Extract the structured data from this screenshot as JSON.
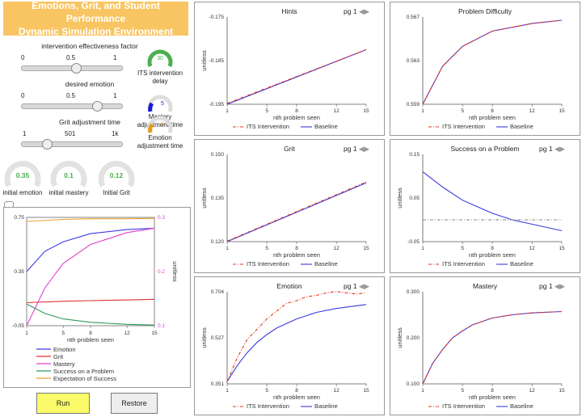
{
  "header": {
    "title_line1": "Emotions, Grit, and Student Performance",
    "title_line2": "Dynamic Simulation Environment"
  },
  "sliders": [
    {
      "label": "intervention effectiveness factor",
      "ticks": [
        "0",
        "0.5",
        "1"
      ],
      "value": 0.45
    },
    {
      "label": "desired emotion",
      "ticks": [
        "0",
        "0.5",
        "1"
      ],
      "value": 0.78
    },
    {
      "label": "Grit adjustment time",
      "ticks": [
        "1",
        "501",
        "1k"
      ],
      "value": 0.2
    }
  ],
  "gauges": [
    {
      "value": "30",
      "label1": "ITS intervention",
      "label2": "delay",
      "color": "#4caf50",
      "fraction": 0.45
    },
    {
      "value": "5",
      "label1": "Mastery",
      "label2": "adjustment time",
      "color": "#1a1adb",
      "fraction": 0.25
    },
    {
      "value": "5",
      "label1": "Emotion",
      "label2": "adjustment time",
      "color": "#e89a1a",
      "fraction": 0.25
    }
  ],
  "initial_gauges": [
    {
      "value": "0.35",
      "label": "initial emotion"
    },
    {
      "value": "0.1",
      "label": "initial mastery"
    },
    {
      "value": "0.12",
      "label": "Initial Grit"
    }
  ],
  "buttons": {
    "run": "Run",
    "restore": "Restore"
  },
  "colors": {
    "its": "#e8341c",
    "baseline": "#3a3ae0",
    "banner": "#f8c562",
    "gauge_green": "#4caf50"
  },
  "pager": {
    "label": "pg 1"
  },
  "legend_its": "ITS Intervention",
  "legend_baseline": "Baseline",
  "chart_data": [
    {
      "id": "main",
      "type": "line",
      "xlabel": "nth problem seen",
      "ylabel_right": "unitless",
      "x_ticks": [
        "1",
        "5",
        "8",
        "12",
        "15"
      ],
      "y_ticks_left": [
        "0.75",
        "0.35",
        "-0.05"
      ],
      "y_ticks_right": [
        "0.3",
        "0.2",
        "0.1"
      ],
      "xlim": [
        1,
        15
      ],
      "ylim_left": [
        -0.05,
        0.75
      ],
      "ylim_right": [
        0.1,
        0.3
      ],
      "series": [
        {
          "name": "Emotion",
          "color": "#3a3ae0",
          "axis": "left",
          "x": [
            1,
            3,
            5,
            8,
            12,
            15
          ],
          "values": [
            0.35,
            0.5,
            0.57,
            0.63,
            0.66,
            0.67
          ]
        },
        {
          "name": "Grit",
          "color": "#e03030",
          "axis": "left",
          "x": [
            1,
            5,
            8,
            12,
            15
          ],
          "values": [
            0.12,
            0.13,
            0.135,
            0.14,
            0.145
          ]
        },
        {
          "name": "Mastery",
          "color": "#e040d0",
          "axis": "right",
          "x": [
            1,
            3,
            5,
            8,
            12,
            15
          ],
          "values": [
            0.1,
            0.17,
            0.215,
            0.25,
            0.272,
            0.28
          ]
        },
        {
          "name": "Success on a Problem",
          "color": "#2e9a5a",
          "axis": "left",
          "x": [
            1,
            3,
            5,
            8,
            12,
            15
          ],
          "values": [
            0.11,
            0.04,
            0.0,
            -0.025,
            -0.04,
            -0.045
          ]
        },
        {
          "name": "Expectation of Success",
          "color": "#f0a030",
          "axis": "left",
          "x": [
            1,
            5,
            8,
            12,
            15
          ],
          "values": [
            0.72,
            0.735,
            0.74,
            0.74,
            0.742
          ]
        }
      ]
    },
    {
      "id": "hints",
      "type": "line",
      "title": "Hints",
      "xlabel": "nth problem seen",
      "ylabel": "unitless",
      "x_ticks": [
        "1",
        "5",
        "8",
        "12",
        "15"
      ],
      "y_ticks": [
        "-0.175",
        "-0.185",
        "-0.195"
      ],
      "xlim": [
        1,
        15
      ],
      "ylim": [
        -0.195,
        -0.175
      ],
      "series": [
        {
          "name": "ITS Intervention",
          "dashed": true,
          "x": [
            1,
            15
          ],
          "values": [
            -0.1948,
            -0.1825
          ]
        },
        {
          "name": "Baseline",
          "x": [
            1,
            15
          ],
          "values": [
            -0.195,
            -0.1825
          ]
        }
      ]
    },
    {
      "id": "difficulty",
      "type": "line",
      "title": "Problem Difficulty",
      "xlabel": "nth problem seen",
      "ylabel": "",
      "x_ticks": [
        "1",
        "5",
        "8",
        "12",
        "15"
      ],
      "y_ticks": [
        "0.567",
        "0.563",
        "0.559"
      ],
      "xlim": [
        1,
        15
      ],
      "ylim": [
        0.559,
        0.567
      ],
      "series": [
        {
          "name": "ITS Intervention",
          "dashed": true,
          "x": [
            1,
            3,
            5,
            8,
            12,
            15
          ],
          "values": [
            0.559,
            0.5625,
            0.5643,
            0.5657,
            0.5664,
            0.5667
          ]
        },
        {
          "name": "Baseline",
          "x": [
            1,
            3,
            5,
            8,
            12,
            15
          ],
          "values": [
            0.559,
            0.5625,
            0.5643,
            0.5657,
            0.5664,
            0.5667
          ]
        }
      ]
    },
    {
      "id": "grit",
      "type": "line",
      "title": "Grit",
      "xlabel": "nth problem seen",
      "ylabel": "unitless",
      "x_ticks": [
        "1",
        "5",
        "8",
        "12",
        "15"
      ],
      "y_ticks": [
        "0.150",
        "0.135",
        "0.120"
      ],
      "xlim": [
        1,
        15
      ],
      "ylim": [
        0.12,
        0.15
      ],
      "series": [
        {
          "name": "ITS Intervention",
          "dashed": true,
          "x": [
            1,
            15
          ],
          "values": [
            0.1202,
            0.1405
          ]
        },
        {
          "name": "Baseline",
          "x": [
            1,
            15
          ],
          "values": [
            0.12,
            0.1402
          ]
        }
      ]
    },
    {
      "id": "success",
      "type": "line",
      "title": "Success on a Problem",
      "xlabel": "nth problem seen",
      "ylabel": "unitless",
      "x_ticks": [
        "1",
        "5",
        "8",
        "12",
        "15"
      ],
      "y_ticks": [
        "0.15",
        "0.05",
        "-0.05"
      ],
      "xlim": [
        1,
        15
      ],
      "ylim": [
        -0.05,
        0.15
      ],
      "series": [
        {
          "name": "ITS Intervention",
          "dashed": true,
          "color": "#888888",
          "x": [
            1,
            15
          ],
          "values": [
            0.0,
            0.0
          ]
        },
        {
          "name": "Baseline",
          "x": [
            1,
            3,
            5,
            8,
            10,
            12,
            15
          ],
          "values": [
            0.11,
            0.075,
            0.045,
            0.015,
            0.0,
            -0.01,
            -0.025
          ]
        }
      ]
    },
    {
      "id": "emotion",
      "type": "line",
      "title": "Emotion",
      "xlabel": "nth problem seen",
      "ylabel": "unitless",
      "x_ticks": [
        "1",
        "5",
        "8",
        "12",
        "15"
      ],
      "y_ticks": [
        "0.704",
        "0.527",
        "0.351"
      ],
      "xlim": [
        1,
        15
      ],
      "ylim": [
        0.351,
        0.704
      ],
      "series": [
        {
          "name": "ITS Intervention",
          "dashed": true,
          "x": [
            1,
            2,
            3,
            4,
            5,
            6,
            7,
            8,
            9,
            10,
            11,
            12,
            13,
            14,
            15
          ],
          "values": [
            0.36,
            0.45,
            0.52,
            0.56,
            0.6,
            0.63,
            0.66,
            0.67,
            0.685,
            0.69,
            0.7,
            0.705,
            0.7,
            0.695,
            0.7
          ]
        },
        {
          "name": "Baseline",
          "x": [
            1,
            2,
            3,
            4,
            5,
            6,
            8,
            10,
            12,
            15
          ],
          "values": [
            0.36,
            0.42,
            0.47,
            0.51,
            0.54,
            0.565,
            0.6,
            0.625,
            0.64,
            0.655
          ]
        }
      ]
    },
    {
      "id": "mastery",
      "type": "line",
      "title": "Mastery",
      "xlabel": "nth problem seen",
      "ylabel": "unitless",
      "x_ticks": [
        "1",
        "5",
        "8",
        "12",
        "15"
      ],
      "y_ticks": [
        "0.300",
        "0.200",
        "0.100"
      ],
      "xlim": [
        1,
        15
      ],
      "ylim": [
        0.1,
        0.3
      ],
      "series": [
        {
          "name": "ITS Intervention",
          "dashed": true,
          "x": [
            1,
            2,
            3,
            4,
            5,
            6,
            8,
            10,
            12,
            15
          ],
          "values": [
            0.1,
            0.145,
            0.175,
            0.2,
            0.215,
            0.228,
            0.243,
            0.25,
            0.254,
            0.257
          ]
        },
        {
          "name": "Baseline",
          "x": [
            1,
            2,
            3,
            4,
            5,
            6,
            8,
            10,
            12,
            15
          ],
          "values": [
            0.1,
            0.145,
            0.175,
            0.2,
            0.215,
            0.228,
            0.243,
            0.25,
            0.254,
            0.257
          ]
        }
      ]
    }
  ]
}
